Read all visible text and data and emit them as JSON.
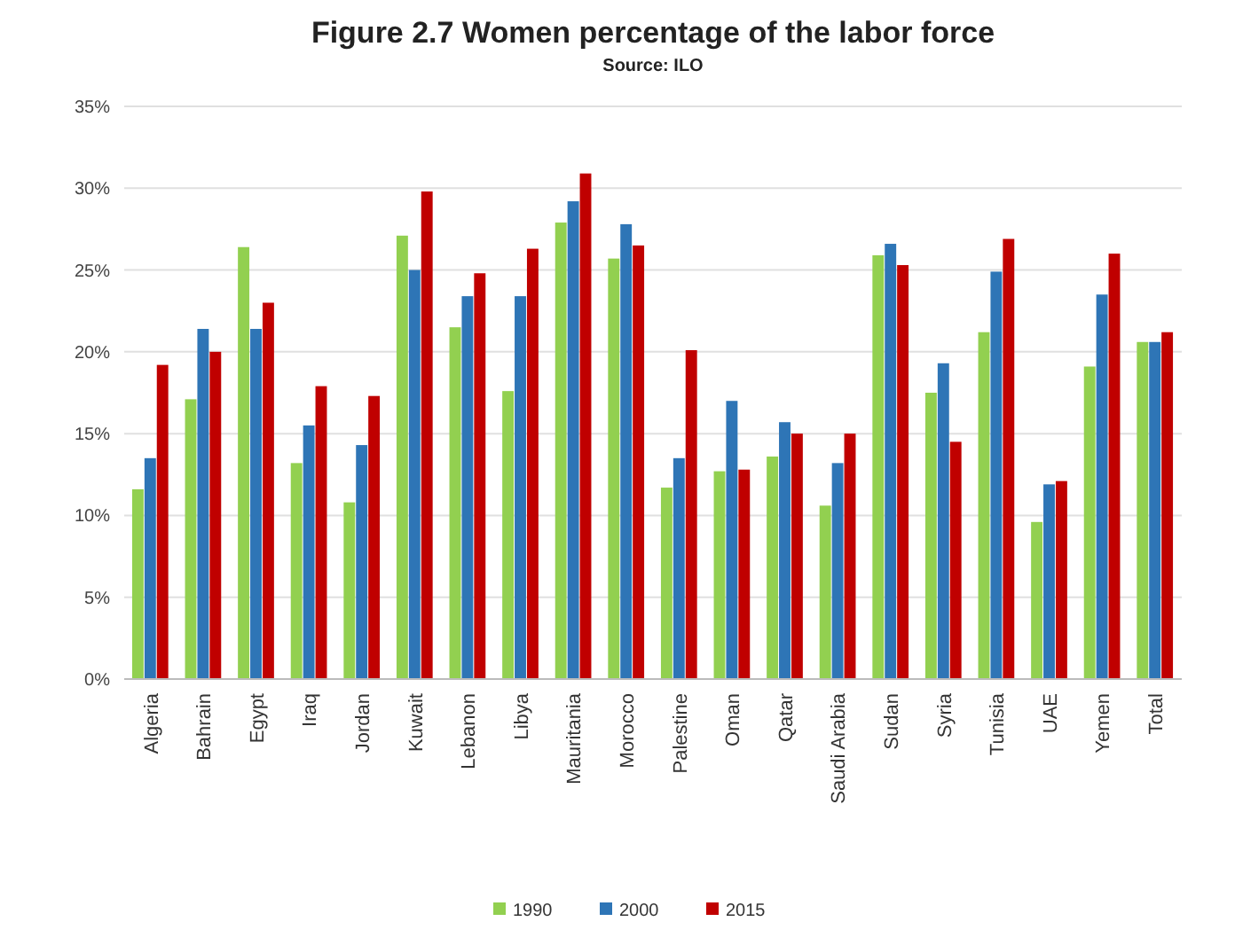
{
  "chart_data": {
    "type": "bar",
    "title": "Figure 2.7 Women percentage of the labor force",
    "subtitle": "Source: ILO",
    "categories": [
      "Algeria",
      "Bahrain",
      "Egypt",
      "Iraq",
      "Jordan",
      "Kuwait",
      "Lebanon",
      "Libya",
      "Mauritania",
      "Morocco",
      "Palestine",
      "Oman",
      "Qatar",
      "Saudi Arabia",
      "Sudan",
      "Syria",
      "Tunisia",
      "UAE",
      "Yemen",
      "Total"
    ],
    "series": [
      {
        "name": "1990",
        "color": "#92d050",
        "values": [
          11.6,
          17.1,
          26.4,
          13.2,
          10.8,
          27.1,
          21.5,
          17.6,
          27.9,
          25.7,
          11.7,
          12.7,
          13.6,
          10.6,
          25.9,
          17.5,
          21.2,
          9.6,
          19.1,
          20.6
        ]
      },
      {
        "name": "2000",
        "color": "#2e75b6",
        "values": [
          13.5,
          21.4,
          21.4,
          15.5,
          14.3,
          25,
          23.4,
          23.4,
          29.2,
          27.8,
          13.5,
          17,
          15.7,
          13.2,
          26.6,
          19.3,
          24.9,
          11.9,
          23.5,
          20.6
        ]
      },
      {
        "name": "2015",
        "color": "#c00000",
        "values": [
          19.2,
          20,
          23,
          17.9,
          17.3,
          29.8,
          24.8,
          26.3,
          30.9,
          26.5,
          20.1,
          12.8,
          15,
          15,
          25.3,
          14.5,
          26.9,
          12.1,
          26,
          21.2
        ]
      }
    ],
    "ylim": [
      0,
      35
    ],
    "yticks": [
      {
        "value": 0,
        "label": "0%"
      },
      {
        "value": 5,
        "label": "5%"
      },
      {
        "value": 10,
        "label": "10%"
      },
      {
        "value": 15,
        "label": "15%"
      },
      {
        "value": 20,
        "label": "20%"
      },
      {
        "value": 25,
        "label": "25%"
      },
      {
        "value": 30,
        "label": "30%"
      },
      {
        "value": 35,
        "label": "35%"
      }
    ],
    "grid": "y",
    "legend": "bottom"
  }
}
